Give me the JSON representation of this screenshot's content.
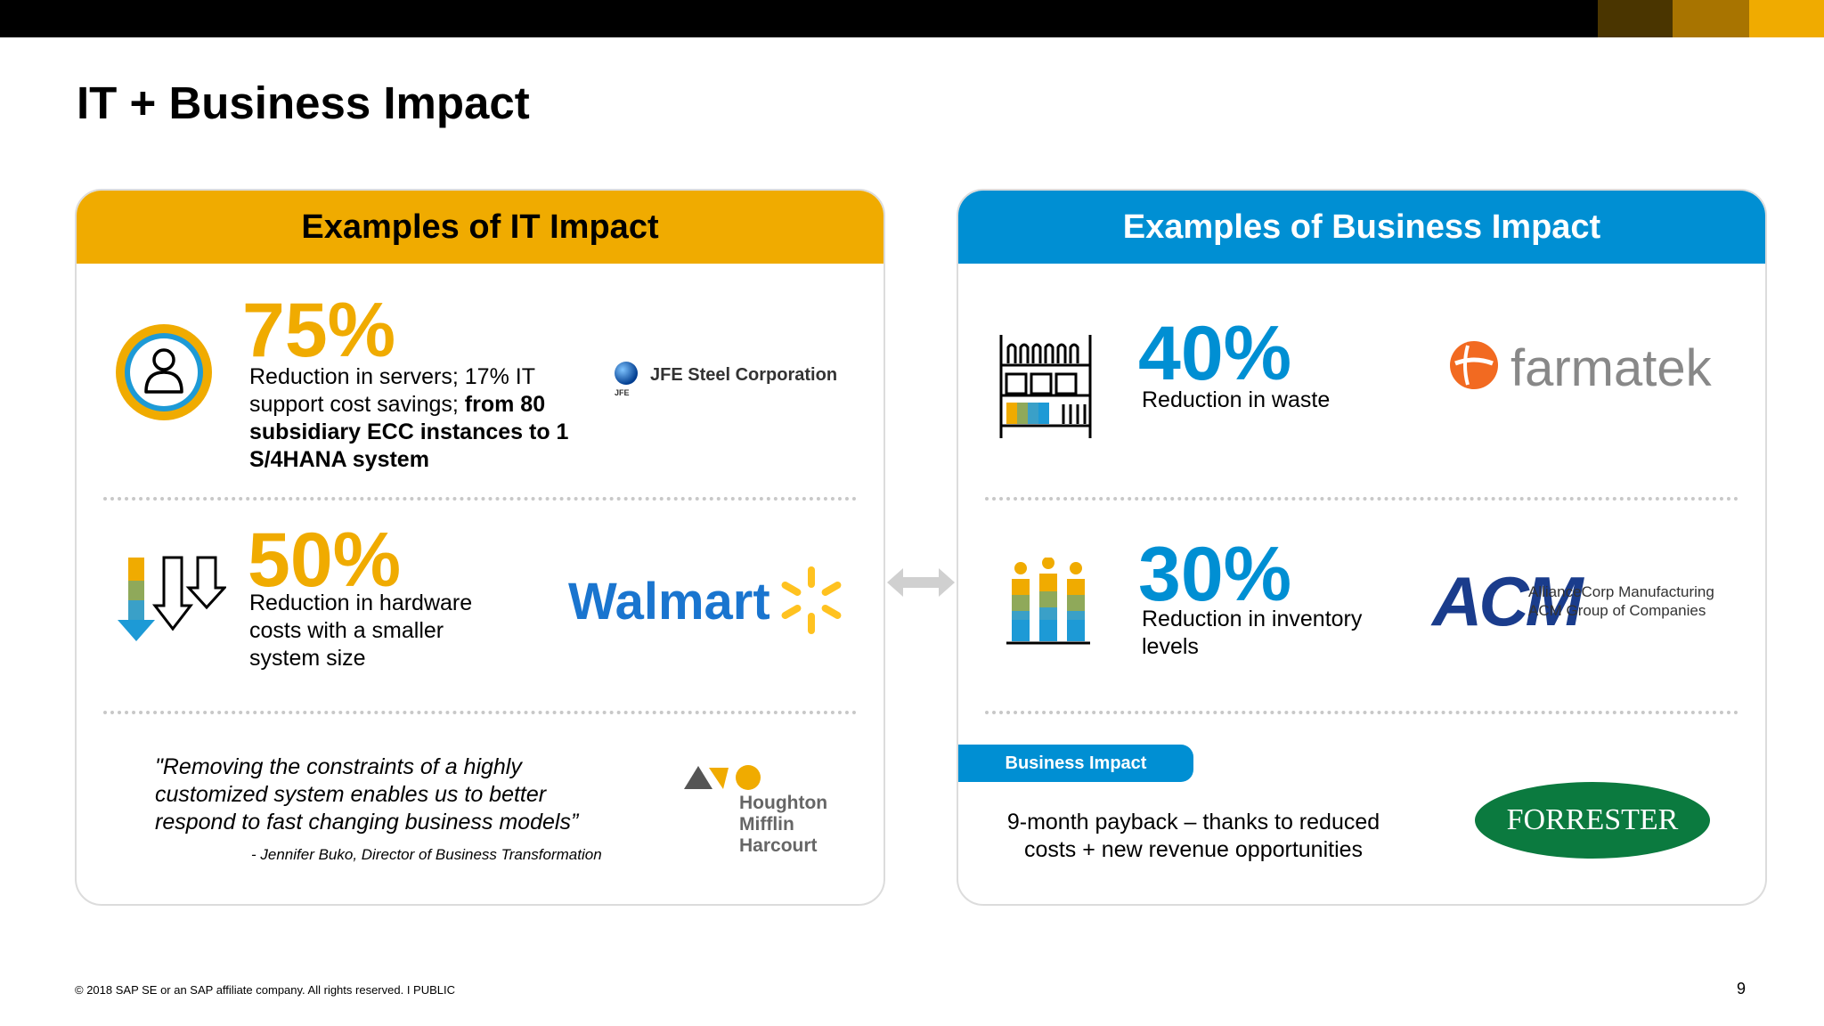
{
  "slide": {
    "title": "IT + Business Impact",
    "page_number": "9",
    "footer": "© 2018 SAP SE or an SAP affiliate company. All rights reserved.  I   PUBLIC"
  },
  "colors": {
    "gold": "#f0ab00",
    "blue": "#008fd3",
    "dark_brown": "#4a3500",
    "mid_brown": "#a87400"
  },
  "it_impact": {
    "header": "Examples of IT Impact",
    "items": [
      {
        "percent": "75%",
        "desc_plain": "Reduction in servers; 17% IT support cost savings; ",
        "desc_bold": "from 80 subsidiary ECC instances to 1 S/4HANA system",
        "icon": "user-circle-icon",
        "company": "JFE Steel Corporation",
        "company_sub": "JFE"
      },
      {
        "percent": "50%",
        "desc": "Reduction in hardware costs with a smaller system size",
        "icon": "down-arrows-icon",
        "company": "Walmart"
      }
    ],
    "quote": "\"Removing the constraints of a highly customized system enables us to better respond to fast changing business models”",
    "quote_attr": "- Jennifer Buko, Director of Business Transformation",
    "quote_company": [
      "Houghton",
      "Mifflin",
      "Harcourt"
    ]
  },
  "business_impact": {
    "header": "Examples of Business Impact",
    "items": [
      {
        "percent": "40%",
        "desc": "Reduction in waste",
        "icon": "shelves-icon",
        "company": "farmatek"
      },
      {
        "percent": "30%",
        "desc": "Reduction in inventory levels",
        "icon": "people-bars-icon",
        "company": "ACM",
        "company_line1": "AllianceCorp Manufacturing",
        "company_line2": "ACM Group of Companies"
      }
    ],
    "badge": "Business Impact",
    "payback_text": "9-month payback – thanks to reduced costs + new revenue opportunities",
    "payback_company": "FORRESTER"
  }
}
